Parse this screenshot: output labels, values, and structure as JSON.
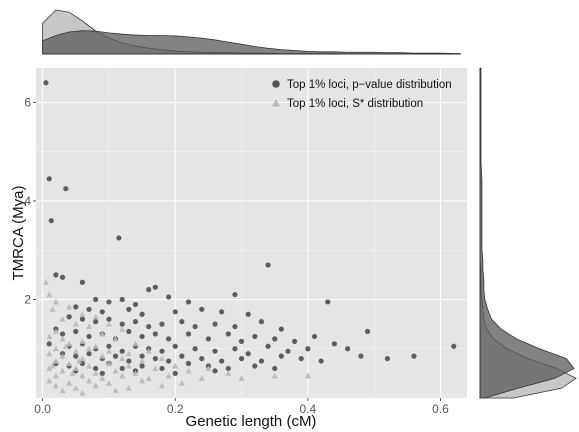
{
  "colors": {
    "panel_bg": "#e5e5e5",
    "grid": "#ffffff",
    "pvalue_series": "#555555",
    "sstar_series": "#b8b8b8",
    "density_pvalue_fill": "#5a5a5a",
    "density_sstar_fill": "#bdbdbd"
  },
  "chart_data": {
    "type": "scatter",
    "title": "",
    "xlabel": "Genetic length (cM)",
    "ylabel": "TMRCA (Mya)",
    "xlim": [
      -0.01,
      0.64
    ],
    "ylim": [
      0.0,
      6.7
    ],
    "x_ticks": [
      0.0,
      0.2,
      0.4,
      0.6
    ],
    "x_tick_labels": [
      "0.0",
      "0.2",
      "0.4",
      "0.6"
    ],
    "y_ticks": [
      2,
      4,
      6
    ],
    "y_tick_labels": [
      "2",
      "4",
      "6"
    ],
    "grid": true,
    "legend_position": "top-right",
    "marginal_densities": {
      "top": "x",
      "right": "y"
    },
    "series": [
      {
        "name": "Top 1% loci, p−value distribution",
        "marker": "circle",
        "color": "#555555",
        "points": [
          [
            0.005,
            6.4
          ],
          [
            0.01,
            4.45
          ],
          [
            0.035,
            4.25
          ],
          [
            0.013,
            3.6
          ],
          [
            0.115,
            3.25
          ],
          [
            0.34,
            2.7
          ],
          [
            0.29,
            2.1
          ],
          [
            0.02,
            2.5
          ],
          [
            0.03,
            2.45
          ],
          [
            0.06,
            2.35
          ],
          [
            0.16,
            2.2
          ],
          [
            0.17,
            2.25
          ],
          [
            0.19,
            2.05
          ],
          [
            0.08,
            2.0
          ],
          [
            0.1,
            1.95
          ],
          [
            0.12,
            2.0
          ],
          [
            0.14,
            1.9
          ],
          [
            0.22,
            1.95
          ],
          [
            0.05,
            1.85
          ],
          [
            0.07,
            1.8
          ],
          [
            0.09,
            1.75
          ],
          [
            0.13,
            1.8
          ],
          [
            0.15,
            1.7
          ],
          [
            0.2,
            1.75
          ],
          [
            0.24,
            1.8
          ],
          [
            0.27,
            1.75
          ],
          [
            0.31,
            1.7
          ],
          [
            0.43,
            1.95
          ],
          [
            0.04,
            1.65
          ],
          [
            0.06,
            1.6
          ],
          [
            0.08,
            1.55
          ],
          [
            0.1,
            1.6
          ],
          [
            0.12,
            1.5
          ],
          [
            0.14,
            1.55
          ],
          [
            0.16,
            1.45
          ],
          [
            0.18,
            1.5
          ],
          [
            0.21,
            1.55
          ],
          [
            0.23,
            1.45
          ],
          [
            0.26,
            1.5
          ],
          [
            0.29,
            1.45
          ],
          [
            0.33,
            1.55
          ],
          [
            0.36,
            1.4
          ],
          [
            0.02,
            1.4
          ],
          [
            0.03,
            1.3
          ],
          [
            0.05,
            1.35
          ],
          [
            0.07,
            1.25
          ],
          [
            0.09,
            1.3
          ],
          [
            0.11,
            1.2
          ],
          [
            0.13,
            1.35
          ],
          [
            0.15,
            1.25
          ],
          [
            0.17,
            1.3
          ],
          [
            0.19,
            1.2
          ],
          [
            0.22,
            1.3
          ],
          [
            0.25,
            1.2
          ],
          [
            0.28,
            1.3
          ],
          [
            0.3,
            1.15
          ],
          [
            0.32,
            1.25
          ],
          [
            0.35,
            1.2
          ],
          [
            0.38,
            1.15
          ],
          [
            0.41,
            1.25
          ],
          [
            0.44,
            1.1
          ],
          [
            0.49,
            1.35
          ],
          [
            0.01,
            1.1
          ],
          [
            0.04,
            1.05
          ],
          [
            0.06,
            1.1
          ],
          [
            0.08,
            1.0
          ],
          [
            0.1,
            1.05
          ],
          [
            0.12,
            0.95
          ],
          [
            0.14,
            1.05
          ],
          [
            0.16,
            1.0
          ],
          [
            0.18,
            0.95
          ],
          [
            0.2,
            1.05
          ],
          [
            0.23,
            1.0
          ],
          [
            0.26,
            0.95
          ],
          [
            0.29,
            1.0
          ],
          [
            0.31,
            0.9
          ],
          [
            0.34,
            1.05
          ],
          [
            0.37,
            0.95
          ],
          [
            0.4,
            1.0
          ],
          [
            0.46,
            1.0
          ],
          [
            0.52,
            0.8
          ],
          [
            0.56,
            0.85
          ],
          [
            0.62,
            1.05
          ],
          [
            0.03,
            0.9
          ],
          [
            0.05,
            0.85
          ],
          [
            0.07,
            0.9
          ],
          [
            0.09,
            0.8
          ],
          [
            0.11,
            0.85
          ],
          [
            0.13,
            0.75
          ],
          [
            0.15,
            0.85
          ],
          [
            0.17,
            0.8
          ],
          [
            0.19,
            0.75
          ],
          [
            0.21,
            0.85
          ],
          [
            0.24,
            0.8
          ],
          [
            0.27,
            0.75
          ],
          [
            0.3,
            0.8
          ],
          [
            0.33,
            0.75
          ],
          [
            0.36,
            0.85
          ],
          [
            0.39,
            0.8
          ],
          [
            0.42,
            0.75
          ],
          [
            0.48,
            0.85
          ],
          [
            0.02,
            0.7
          ],
          [
            0.04,
            0.65
          ],
          [
            0.06,
            0.7
          ],
          [
            0.08,
            0.6
          ],
          [
            0.1,
            0.7
          ],
          [
            0.12,
            0.6
          ],
          [
            0.15,
            0.65
          ],
          [
            0.18,
            0.6
          ],
          [
            0.22,
            0.7
          ],
          [
            0.25,
            0.65
          ],
          [
            0.28,
            0.6
          ],
          [
            0.32,
            0.65
          ],
          [
            0.35,
            0.6
          ],
          [
            0.05,
            0.55
          ],
          [
            0.09,
            0.5
          ],
          [
            0.14,
            0.55
          ],
          [
            0.2,
            0.5
          ],
          [
            0.26,
            0.55
          ]
        ]
      },
      {
        "name": "Top 1% loci, S* distribution",
        "marker": "triangle",
        "color": "#b8b8b8",
        "points": [
          [
            0.005,
            2.35
          ],
          [
            0.01,
            2.1
          ],
          [
            0.02,
            1.95
          ],
          [
            0.015,
            1.8
          ],
          [
            0.04,
            1.85
          ],
          [
            0.06,
            1.7
          ],
          [
            0.08,
            1.65
          ],
          [
            0.03,
            1.6
          ],
          [
            0.05,
            1.5
          ],
          [
            0.07,
            1.45
          ],
          [
            0.1,
            1.5
          ],
          [
            0.12,
            1.4
          ],
          [
            0.02,
            1.35
          ],
          [
            0.09,
            1.3
          ],
          [
            0.01,
            1.25
          ],
          [
            0.03,
            1.2
          ],
          [
            0.06,
            1.15
          ],
          [
            0.11,
            1.2
          ],
          [
            0.14,
            1.1
          ],
          [
            0.04,
            1.1
          ],
          [
            0.08,
            1.05
          ],
          [
            0.02,
            1.0
          ],
          [
            0.05,
            0.95
          ],
          [
            0.07,
            1.0
          ],
          [
            0.1,
            0.95
          ],
          [
            0.13,
            0.9
          ],
          [
            0.16,
            0.95
          ],
          [
            0.01,
            0.9
          ],
          [
            0.03,
            0.85
          ],
          [
            0.06,
            0.8
          ],
          [
            0.09,
            0.85
          ],
          [
            0.12,
            0.8
          ],
          [
            0.15,
            0.75
          ],
          [
            0.18,
            0.8
          ],
          [
            0.02,
            0.75
          ],
          [
            0.04,
            0.7
          ],
          [
            0.07,
            0.65
          ],
          [
            0.1,
            0.7
          ],
          [
            0.13,
            0.65
          ],
          [
            0.17,
            0.6
          ],
          [
            0.2,
            0.65
          ],
          [
            0.01,
            0.6
          ],
          [
            0.03,
            0.55
          ],
          [
            0.05,
            0.6
          ],
          [
            0.08,
            0.5
          ],
          [
            0.11,
            0.55
          ],
          [
            0.14,
            0.5
          ],
          [
            0.22,
            0.55
          ],
          [
            0.25,
            0.6
          ],
          [
            0.02,
            0.45
          ],
          [
            0.06,
            0.45
          ],
          [
            0.09,
            0.4
          ],
          [
            0.12,
            0.45
          ],
          [
            0.16,
            0.4
          ],
          [
            0.19,
            0.45
          ],
          [
            0.24,
            0.4
          ],
          [
            0.28,
            0.5
          ],
          [
            0.01,
            0.35
          ],
          [
            0.04,
            0.3
          ],
          [
            0.07,
            0.35
          ],
          [
            0.1,
            0.3
          ],
          [
            0.15,
            0.35
          ],
          [
            0.21,
            0.3
          ],
          [
            0.3,
            0.4
          ],
          [
            0.35,
            0.45
          ],
          [
            0.02,
            0.25
          ],
          [
            0.05,
            0.2
          ],
          [
            0.08,
            0.25
          ],
          [
            0.13,
            0.2
          ],
          [
            0.18,
            0.25
          ],
          [
            0.03,
            0.15
          ],
          [
            0.06,
            0.1
          ],
          [
            0.11,
            0.15
          ],
          [
            0.4,
            0.45
          ],
          [
            0.045,
            0.5
          ],
          [
            0.015,
            0.65
          ],
          [
            0.035,
            1.05
          ],
          [
            0.055,
            0.75
          ]
        ]
      }
    ],
    "density_x": {
      "x": [
        0.0,
        0.02,
        0.04,
        0.06,
        0.08,
        0.1,
        0.12,
        0.14,
        0.16,
        0.18,
        0.2,
        0.22,
        0.24,
        0.26,
        0.28,
        0.3,
        0.32,
        0.34,
        0.36,
        0.38,
        0.4,
        0.42,
        0.44,
        0.46,
        0.48,
        0.5,
        0.52,
        0.54,
        0.56,
        0.58,
        0.6,
        0.62,
        0.63
      ],
      "series": [
        {
          "name": "p-value",
          "values": [
            0.3,
            0.42,
            0.5,
            0.53,
            0.52,
            0.48,
            0.45,
            0.43,
            0.42,
            0.42,
            0.41,
            0.39,
            0.36,
            0.32,
            0.27,
            0.22,
            0.17,
            0.13,
            0.1,
            0.08,
            0.06,
            0.05,
            0.05,
            0.04,
            0.04,
            0.04,
            0.03,
            0.03,
            0.02,
            0.02,
            0.02,
            0.01,
            0.01
          ]
        },
        {
          "name": "S*",
          "values": [
            0.7,
            1.0,
            0.95,
            0.75,
            0.52,
            0.36,
            0.25,
            0.18,
            0.13,
            0.1,
            0.07,
            0.05,
            0.04,
            0.03,
            0.03,
            0.02,
            0.02,
            0.02,
            0.01,
            0.01,
            0.01,
            0.01,
            0.01,
            0.0,
            0.0,
            0.0,
            0.0,
            0.0,
            0.0,
            0.0,
            0.0,
            0.0,
            0.0
          ]
        }
      ]
    },
    "density_y": {
      "y": [
        0.0,
        0.2,
        0.4,
        0.6,
        0.8,
        1.0,
        1.2,
        1.4,
        1.6,
        1.8,
        2.0,
        2.2,
        2.4,
        2.6,
        2.8,
        3.0,
        3.2,
        3.4,
        3.6,
        3.8,
        4.0,
        4.4,
        4.8,
        5.2,
        5.6,
        6.0,
        6.4,
        6.7
      ],
      "series": [
        {
          "name": "p-value",
          "values": [
            0.05,
            0.4,
            0.78,
            0.98,
            0.9,
            0.62,
            0.38,
            0.22,
            0.12,
            0.08,
            0.05,
            0.04,
            0.04,
            0.03,
            0.03,
            0.02,
            0.02,
            0.02,
            0.02,
            0.02,
            0.02,
            0.02,
            0.01,
            0.01,
            0.01,
            0.01,
            0.01,
            0.01
          ]
        },
        {
          "name": "S*",
          "values": [
            0.35,
            0.85,
            1.0,
            0.8,
            0.5,
            0.28,
            0.14,
            0.07,
            0.04,
            0.03,
            0.02,
            0.01,
            0.01,
            0.01,
            0.0,
            0.0,
            0.0,
            0.0,
            0.0,
            0.0,
            0.0,
            0.0,
            0.0,
            0.0,
            0.0,
            0.0,
            0.0,
            0.0
          ]
        }
      ]
    }
  }
}
